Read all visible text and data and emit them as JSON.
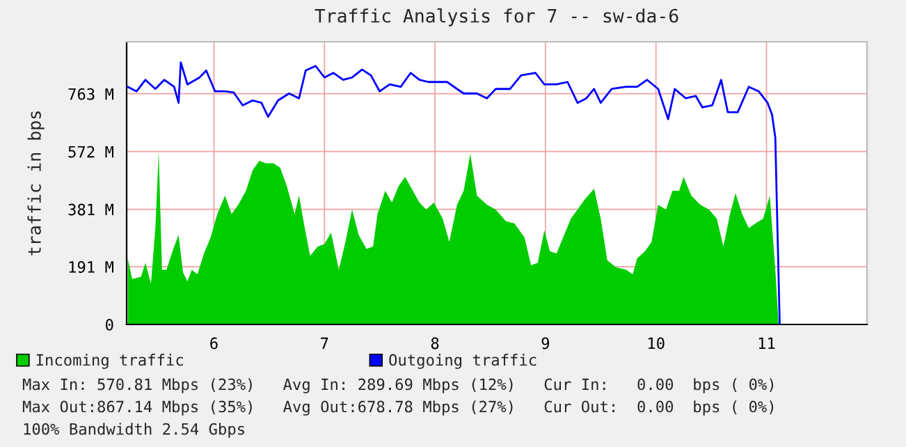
{
  "chart_data": {
    "type": "area",
    "title": "Traffic Analysis for 7 -- sw-da-6",
    "ylabel": "traffic in bps",
    "xlim": [
      5.21,
      11.91
    ],
    "xticks": [
      6,
      7,
      8,
      9,
      10,
      11
    ],
    "ylim": [
      0,
      935
    ],
    "yticks": [
      {
        "value": 0,
        "label": "0"
      },
      {
        "value": 191,
        "label": "191 M"
      },
      {
        "value": 381,
        "label": "381 M"
      },
      {
        "value": 572,
        "label": "572 M"
      },
      {
        "value": 763,
        "label": "763 M"
      }
    ],
    "grid": true,
    "legend": "bottom",
    "series": [
      {
        "name": "Incoming traffic",
        "color": "#00cc00",
        "x": [
          5.22,
          5.26,
          5.34,
          5.38,
          5.43,
          5.47,
          5.5,
          5.53,
          5.57,
          5.64,
          5.68,
          5.72,
          5.76,
          5.8,
          5.85,
          5.91,
          5.97,
          6.03,
          6.1,
          6.16,
          6.22,
          6.29,
          6.35,
          6.41,
          6.47,
          6.54,
          6.6,
          6.66,
          6.73,
          6.77,
          6.81,
          6.87,
          6.94,
          7.0,
          7.06,
          7.13,
          7.19,
          7.25,
          7.31,
          7.38,
          7.44,
          7.48,
          7.55,
          7.61,
          7.67,
          7.73,
          7.8,
          7.86,
          7.92,
          7.99,
          8.07,
          8.13,
          8.2,
          8.26,
          8.32,
          8.38,
          8.47,
          8.55,
          8.64,
          8.72,
          8.81,
          8.87,
          8.93,
          8.99,
          9.04,
          9.1,
          9.16,
          9.23,
          9.29,
          9.35,
          9.44,
          9.5,
          9.56,
          9.64,
          9.73,
          9.79,
          9.83,
          9.9,
          9.96,
          10.02,
          10.09,
          10.15,
          10.21,
          10.25,
          10.32,
          10.4,
          10.48,
          10.55,
          10.61,
          10.67,
          10.72,
          10.78,
          10.84,
          10.9,
          10.97,
          11.03,
          11.08,
          11.11
        ],
        "values": [
          219,
          150,
          158,
          204,
          135,
          319,
          571,
          181,
          181,
          258,
          296,
          173,
          143,
          181,
          166,
          235,
          288,
          365,
          426,
          365,
          396,
          442,
          510,
          541,
          533,
          533,
          518,
          457,
          365,
          426,
          342,
          227,
          258,
          266,
          304,
          181,
          273,
          380,
          296,
          250,
          258,
          365,
          442,
          403,
          457,
          488,
          442,
          403,
          380,
          403,
          350,
          273,
          396,
          442,
          564,
          426,
          396,
          380,
          342,
          334,
          288,
          196,
          204,
          311,
          242,
          235,
          288,
          350,
          380,
          411,
          449,
          350,
          212,
          189,
          181,
          166,
          219,
          242,
          273,
          396,
          380,
          442,
          442,
          488,
          426,
          396,
          380,
          350,
          258,
          365,
          434,
          365,
          319,
          334,
          350,
          426,
          181,
          0
        ]
      },
      {
        "name": "Outgoing traffic",
        "type": "line",
        "color": "#0000ff",
        "x": [
          5.22,
          5.3,
          5.38,
          5.47,
          5.55,
          5.64,
          5.68,
          5.7,
          5.76,
          5.87,
          5.93,
          6.01,
          6.1,
          6.18,
          6.26,
          6.35,
          6.43,
          6.49,
          6.58,
          6.68,
          6.77,
          6.83,
          6.92,
          7.0,
          7.08,
          7.17,
          7.25,
          7.34,
          7.42,
          7.5,
          7.59,
          7.69,
          7.78,
          7.86,
          7.94,
          8.03,
          8.11,
          8.2,
          8.26,
          8.38,
          8.47,
          8.55,
          8.68,
          8.78,
          8.91,
          8.99,
          9.1,
          9.2,
          9.29,
          9.37,
          9.44,
          9.5,
          9.6,
          9.73,
          9.83,
          9.92,
          10.02,
          10.11,
          10.17,
          10.27,
          10.36,
          10.42,
          10.51,
          10.59,
          10.65,
          10.74,
          10.84,
          10.93,
          11.01,
          11.05,
          11.08,
          11.1,
          11.12
        ],
        "values": [
          786,
          771,
          809,
          779,
          809,
          786,
          733,
          867,
          794,
          817,
          840,
          771,
          771,
          767,
          725,
          741,
          733,
          687,
          741,
          764,
          748,
          840,
          855,
          817,
          832,
          809,
          817,
          843,
          824,
          771,
          794,
          786,
          832,
          809,
          802,
          802,
          802,
          779,
          764,
          764,
          748,
          779,
          779,
          824,
          832,
          794,
          794,
          802,
          733,
          748,
          779,
          733,
          779,
          786,
          786,
          809,
          779,
          679,
          779,
          748,
          756,
          718,
          725,
          809,
          702,
          702,
          786,
          771,
          733,
          695,
          618,
          304,
          0
        ]
      }
    ],
    "annotations": [
      "Max In: 570.81 Mbps (23%)   Avg In: 289.69 Mbps (12%)   Cur In:   0.00  bps ( 0%)",
      "Max Out:867.14 Mbps (35%)   Avg Out:678.78 Mbps (27%)   Cur Out:  0.00  bps ( 0%)",
      "100% Bandwidth 2.54 Gbps"
    ]
  }
}
